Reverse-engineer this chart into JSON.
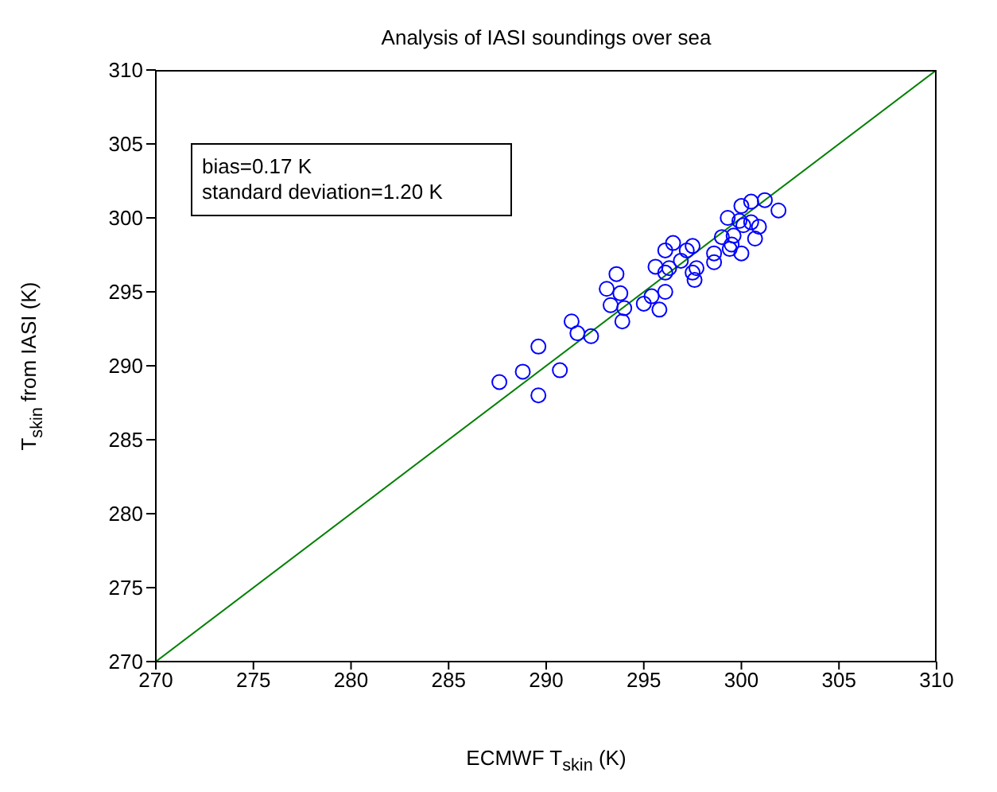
{
  "chart_data": {
    "type": "scatter",
    "title": "Analysis of IASI soundings over sea",
    "xlabel": "ECMWF T$_{skin}$ (K)",
    "ylabel": "T$_{skin}$ from IASI (K)",
    "annotations": [
      "bias=0.17 K",
      "standard deviation=1.20 K"
    ],
    "xlim": [
      270,
      310
    ],
    "xticks": [
      270,
      275,
      280,
      285,
      290,
      295,
      300,
      305,
      310
    ],
    "ylim": [
      270,
      310
    ],
    "yticks": [
      270,
      275,
      280,
      285,
      290,
      295,
      300,
      305,
      310
    ],
    "series": [
      {
        "type": "scatter",
        "marker": "circle",
        "color": "#0000ff",
        "x": [
          287.6,
          289.6,
          288.8,
          289.6,
          290.7,
          291.3,
          291.6,
          292.3,
          293.3,
          293.1,
          293.6,
          293.8,
          294.0,
          293.9,
          295.0,
          295.4,
          295.8,
          296.1,
          295.6,
          296.1,
          296.5,
          296.3,
          296.1,
          296.9,
          297.2,
          297.5,
          297.5,
          297.7,
          297.6,
          298.6,
          298.6,
          299.0,
          299.3,
          300.0,
          300.5,
          301.2,
          301.9,
          299.9,
          300.1,
          300.5,
          300.9,
          300.7,
          299.6,
          299.5,
          299.4,
          300.0
        ],
        "values": [
          288.9,
          288.0,
          289.6,
          291.3,
          289.7,
          293.0,
          292.2,
          292.0,
          294.1,
          295.2,
          296.2,
          294.9,
          293.9,
          293.0,
          294.2,
          294.7,
          293.8,
          295.0,
          296.7,
          297.8,
          298.3,
          296.6,
          296.3,
          297.1,
          297.8,
          298.1,
          296.3,
          296.6,
          295.8,
          297.6,
          297.0,
          298.7,
          300.0,
          300.8,
          301.1,
          301.2,
          300.5,
          299.8,
          299.5,
          299.7,
          299.4,
          298.6,
          298.8,
          298.2,
          297.9,
          297.6
        ]
      },
      {
        "type": "line",
        "marker": "none",
        "color": "#008000",
        "x": [
          270,
          310
        ],
        "values": [
          270,
          310
        ]
      }
    ]
  }
}
